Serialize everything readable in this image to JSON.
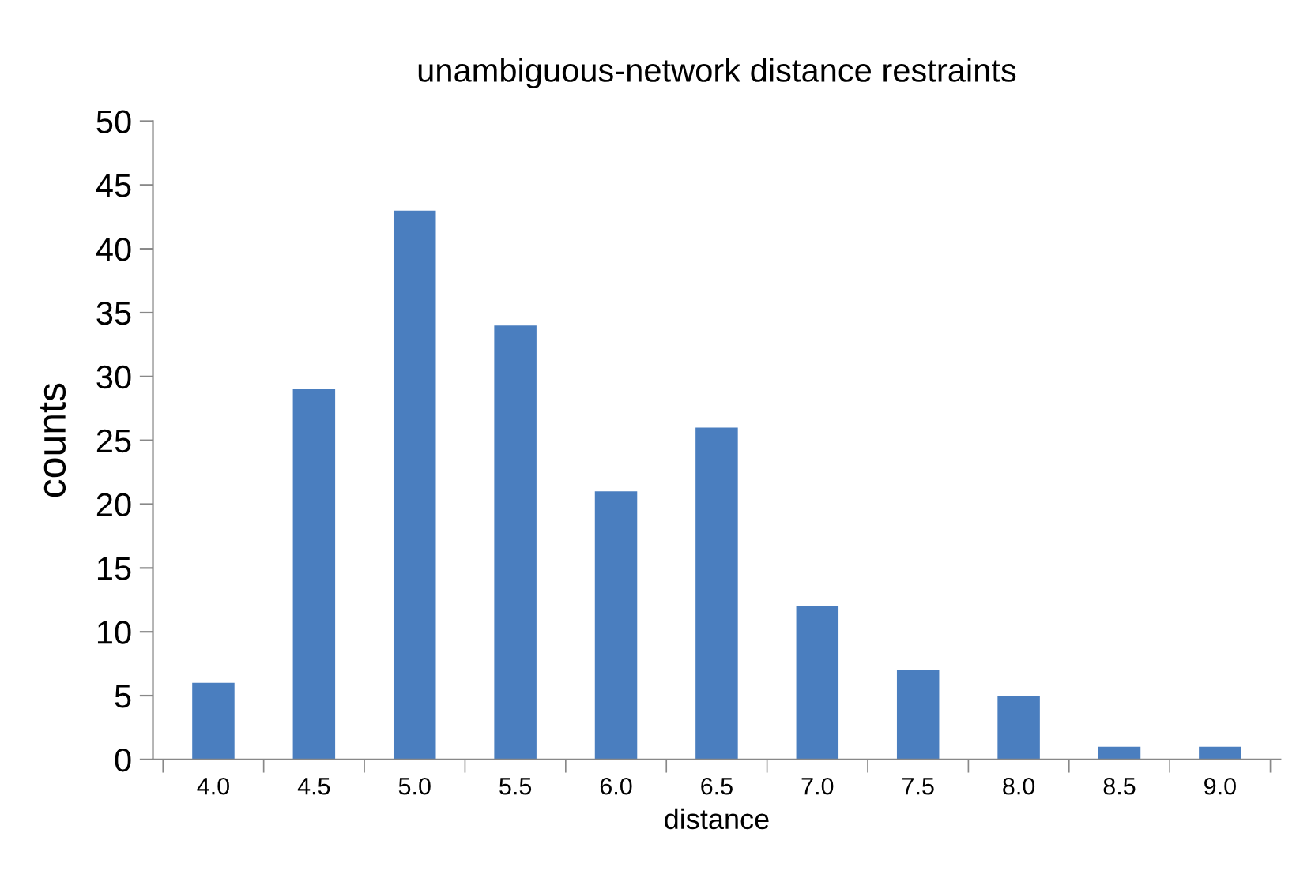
{
  "chart_data": {
    "type": "bar",
    "title": "unambiguous-network distance restraints",
    "xlabel": "distance",
    "ylabel": "counts",
    "categories": [
      "4.0",
      "4.5",
      "5.0",
      "5.5",
      "6.0",
      "6.5",
      "7.0",
      "7.5",
      "8.0",
      "8.5",
      "9.0"
    ],
    "values": [
      6,
      29,
      43,
      34,
      21,
      26,
      12,
      7,
      5,
      1,
      1
    ],
    "color": "#4a7ebf",
    "ylim": [
      0,
      50
    ],
    "yticks": [
      0,
      5,
      10,
      15,
      20,
      25,
      30,
      35,
      40,
      45,
      50
    ],
    "grid": false,
    "legend": false
  }
}
